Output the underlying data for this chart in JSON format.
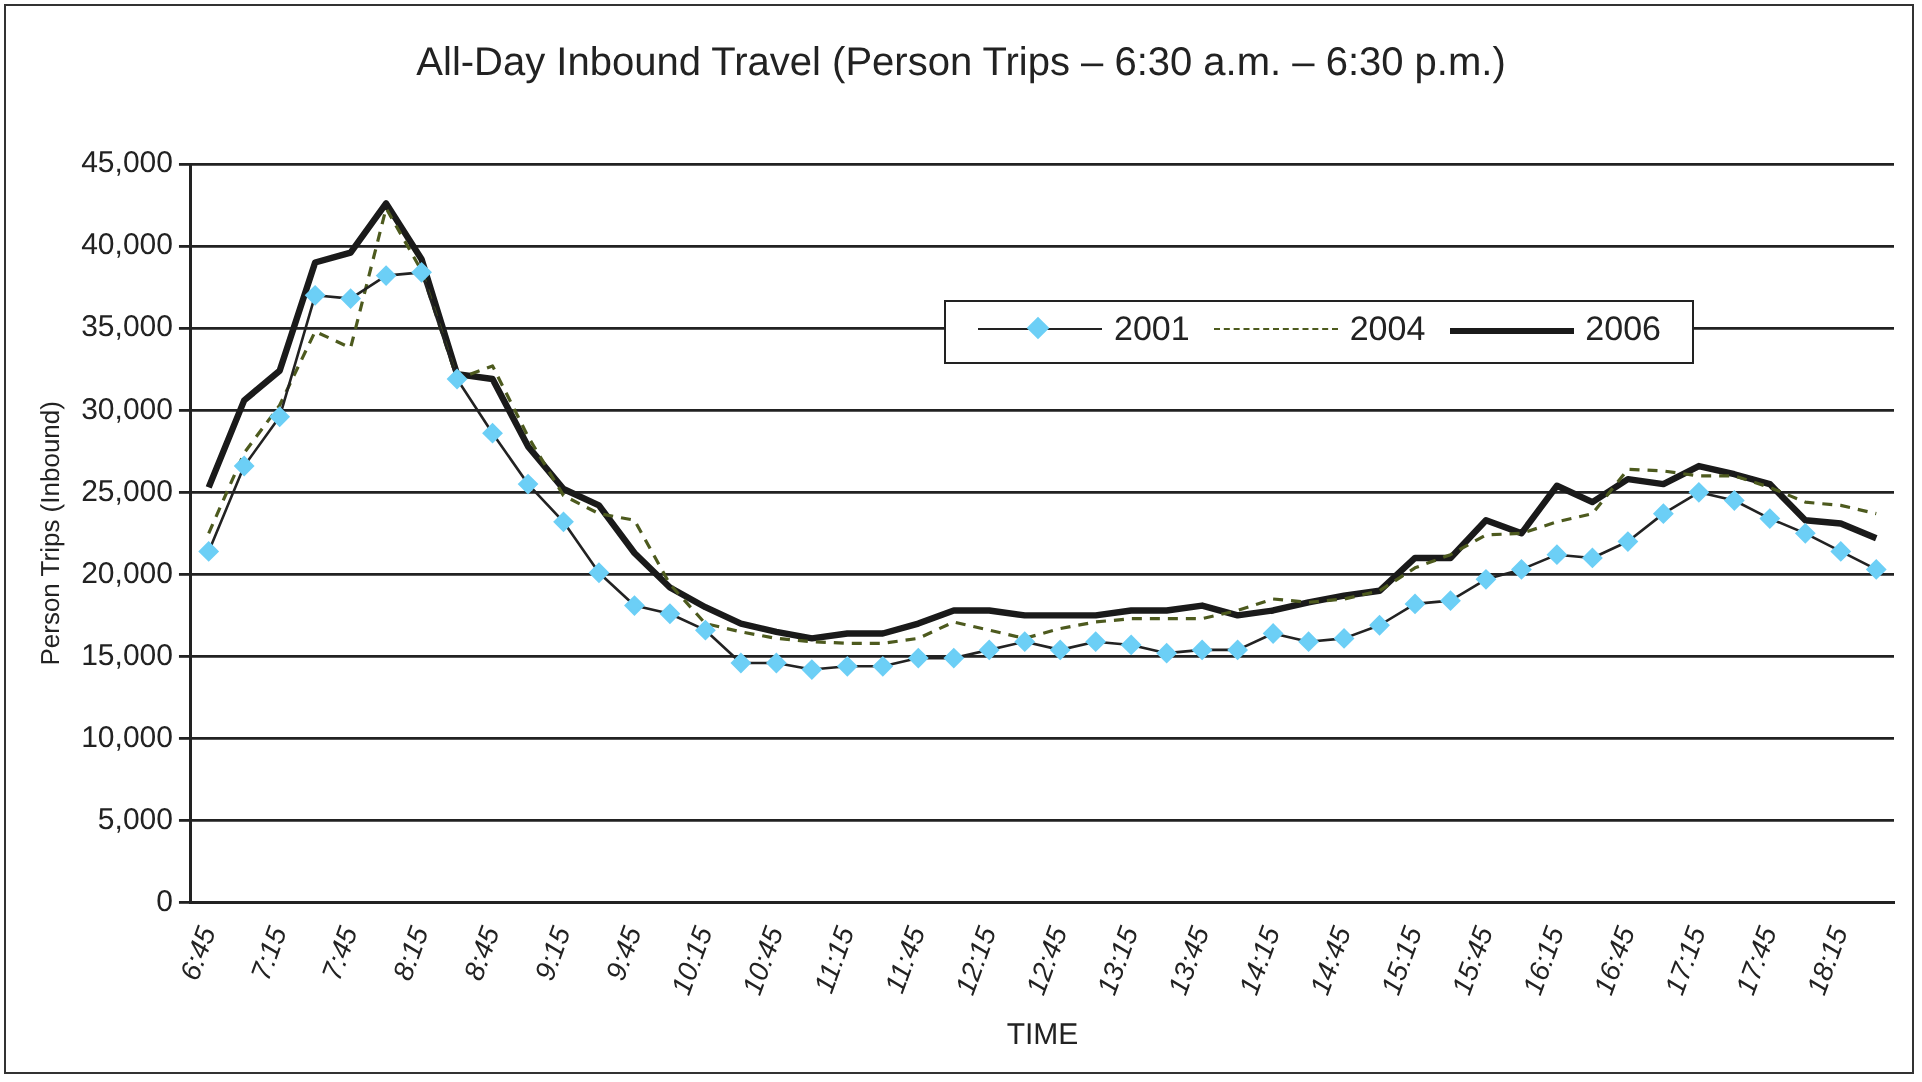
{
  "chart_data": {
    "type": "line",
    "title": "All-Day Inbound Travel (Person Trips – 6:30 a.m. – 6:30 p.m.)",
    "xlabel": "TIME",
    "ylabel": "Person Trips (Inbound)",
    "categories": [
      "6:45",
      null,
      "7:15",
      null,
      "7:45",
      null,
      "8:15",
      null,
      "8:45",
      null,
      "9:15",
      null,
      "9:45",
      null,
      "10:15",
      null,
      "10:45",
      null,
      "11:15",
      null,
      "11:45",
      null,
      "12:15",
      null,
      "12:45",
      null,
      "13:15",
      null,
      "13:45",
      null,
      "14:15",
      null,
      "14:45",
      null,
      "15:15",
      null,
      "15:45",
      null,
      "16:15",
      null,
      "16:45",
      null,
      "17:15",
      null,
      "17:45",
      null,
      "18:15",
      null
    ],
    "series": [
      {
        "name": "2001",
        "color": "#6ccff6",
        "marker": "diamond",
        "line_style": "solid",
        "values": [
          21400,
          26600,
          29600,
          37000,
          36800,
          38200,
          38400,
          31900,
          28600,
          25500,
          23200,
          20100,
          18100,
          17600,
          16600,
          14600,
          14600,
          14200,
          14400,
          14400,
          14900,
          14900,
          15400,
          15900,
          15400,
          15900,
          15700,
          15200,
          15400,
          15400,
          16400,
          15900,
          16100,
          16900,
          18200,
          18400,
          19700,
          20300,
          21200,
          21000,
          22000,
          23700,
          25000,
          24500,
          23400,
          22500,
          21400,
          20300
        ]
      },
      {
        "name": "2004",
        "color": "#4d5a1e",
        "marker": "none",
        "line_style": "dashed",
        "values": [
          22500,
          27400,
          30300,
          34800,
          33800,
          42300,
          38500,
          31900,
          32700,
          28400,
          24800,
          23700,
          23300,
          19400,
          17000,
          16500,
          16100,
          15900,
          15800,
          15800,
          16100,
          17100,
          16600,
          16100,
          16700,
          17100,
          17300,
          17300,
          17300,
          17800,
          18500,
          18300,
          18500,
          19000,
          20400,
          21200,
          22400,
          22500,
          23200,
          23700,
          26400,
          26300,
          26000,
          26000,
          25300,
          24400,
          24200,
          23700
        ]
      },
      {
        "name": "2006",
        "color": "#1a1a1a",
        "marker": "none",
        "line_style": "solid",
        "values": [
          25300,
          30600,
          32400,
          39000,
          39600,
          42600,
          39200,
          32200,
          31900,
          27800,
          25200,
          24200,
          21300,
          19200,
          18000,
          17000,
          16500,
          16100,
          16400,
          16400,
          17000,
          17800,
          17800,
          17500,
          17500,
          17500,
          17800,
          17800,
          18100,
          17500,
          17800,
          18300,
          18700,
          19000,
          21000,
          21000,
          23300,
          22500,
          25400,
          24400,
          25800,
          25500,
          26600,
          26100,
          25500,
          23300,
          23100,
          22200
        ]
      }
    ],
    "ylim": [
      0,
      45000
    ],
    "yticks": [
      0,
      {
        "value": 5000,
        "label": "5,000"
      },
      {
        "value": 10000,
        "label": "10,000"
      },
      {
        "value": 15000,
        "label": "15,000"
      },
      {
        "value": 20000,
        "label": "20,000"
      },
      {
        "value": 25000,
        "label": "25,000"
      },
      {
        "value": 30000,
        "label": "30,000"
      },
      {
        "value": 35000,
        "label": "35,000"
      },
      {
        "value": 40000,
        "label": "40,000"
      },
      {
        "value": 45000,
        "label": "45,000"
      }
    ],
    "grid": "y",
    "legend": "top right"
  }
}
